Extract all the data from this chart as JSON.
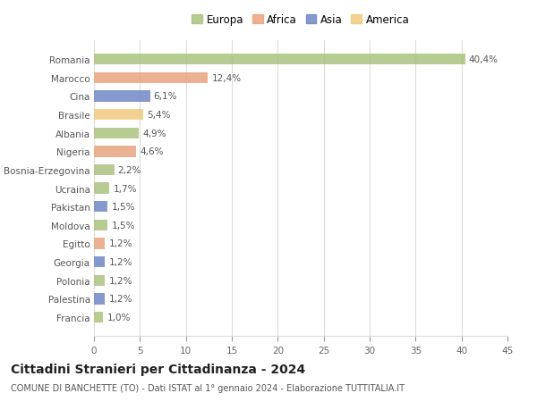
{
  "categories": [
    "Francia",
    "Palestina",
    "Polonia",
    "Georgia",
    "Egitto",
    "Moldova",
    "Pakistan",
    "Ucraina",
    "Bosnia-Erzegovina",
    "Nigeria",
    "Albania",
    "Brasile",
    "Cina",
    "Marocco",
    "Romania"
  ],
  "values": [
    1.0,
    1.2,
    1.2,
    1.2,
    1.2,
    1.5,
    1.5,
    1.7,
    2.2,
    4.6,
    4.9,
    5.4,
    6.1,
    12.4,
    40.4
  ],
  "labels": [
    "1,0%",
    "1,2%",
    "1,2%",
    "1,2%",
    "1,2%",
    "1,5%",
    "1,5%",
    "1,7%",
    "2,2%",
    "4,6%",
    "4,9%",
    "5,4%",
    "6,1%",
    "12,4%",
    "40,4%"
  ],
  "colors": [
    "#a8c07a",
    "#6b83c4",
    "#a8c07a",
    "#6b83c4",
    "#e8a07a",
    "#a8c07a",
    "#6b83c4",
    "#a8c07a",
    "#a8c07a",
    "#e8a07a",
    "#a8c07a",
    "#f0c87a",
    "#6b83c4",
    "#e8a07a",
    "#a8c07a"
  ],
  "continent": [
    "Europa",
    "Asia",
    "Europa",
    "Asia",
    "Africa",
    "Europa",
    "Asia",
    "Europa",
    "Europa",
    "Africa",
    "Europa",
    "America",
    "Asia",
    "Africa",
    "Europa"
  ],
  "legend_labels": [
    "Europa",
    "Africa",
    "Asia",
    "America"
  ],
  "legend_colors": [
    "#a8c07a",
    "#e8a07a",
    "#6b83c4",
    "#f0c87a"
  ],
  "title": "Cittadini Stranieri per Cittadinanza - 2024",
  "subtitle": "COMUNE DI BANCHETTE (TO) - Dati ISTAT al 1° gennaio 2024 - Elaborazione TUTTITALIA.IT",
  "xlim": [
    0,
    45
  ],
  "xticks": [
    0,
    5,
    10,
    15,
    20,
    25,
    30,
    35,
    40,
    45
  ],
  "bg_color": "#ffffff",
  "grid_color": "#dddddd",
  "bar_height": 0.6,
  "label_fontsize": 7.5,
  "tick_fontsize": 7.5,
  "title_fontsize": 10,
  "subtitle_fontsize": 7,
  "legend_fontsize": 8.5,
  "bar_alpha": 0.82
}
